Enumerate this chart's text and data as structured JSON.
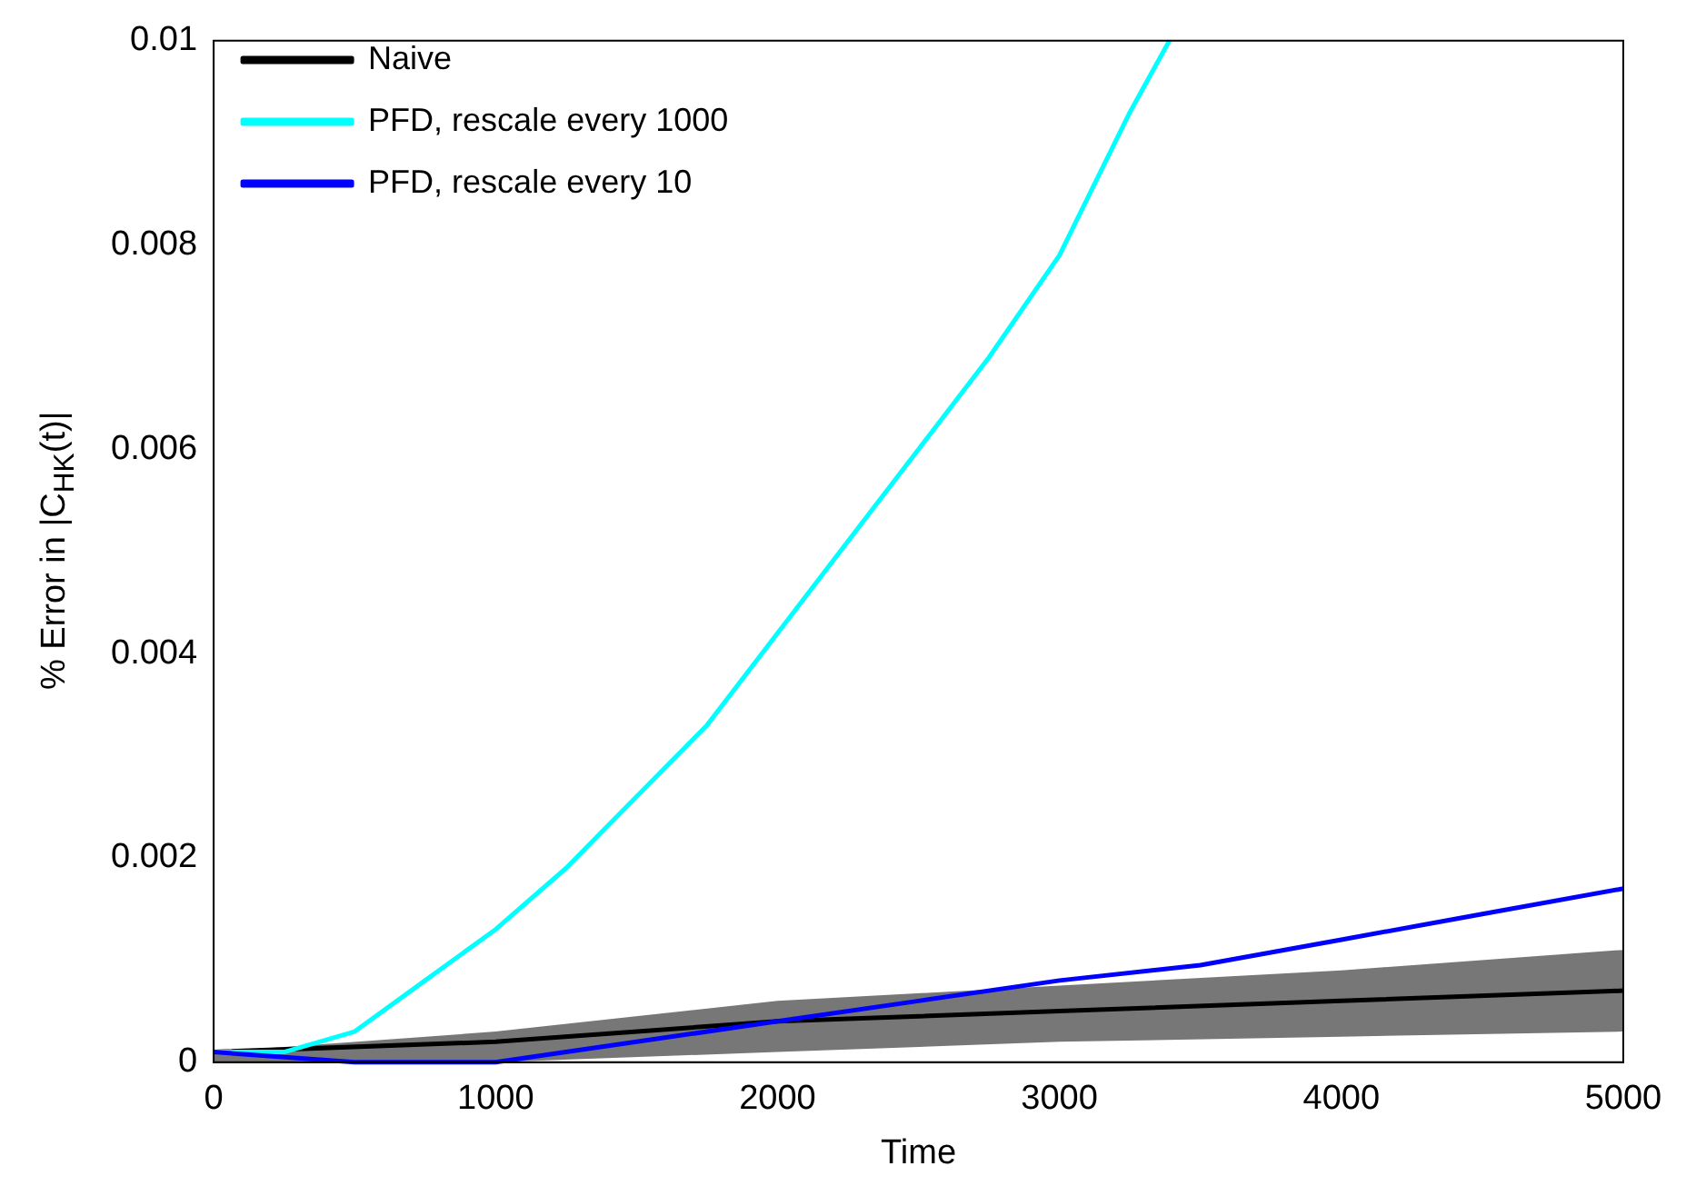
{
  "chart_data": {
    "type": "line",
    "xlabel": "Time",
    "ylabel": "% Error in |C$_{HK}$(t)|",
    "xlim": [
      0,
      5000
    ],
    "xticks": [
      0,
      1000,
      2000,
      3000,
      4000,
      5000
    ],
    "ylim": [
      0,
      0.01
    ],
    "yticks": [
      0,
      0.002,
      0.004,
      0.006,
      0.008,
      0.01
    ],
    "grid": false,
    "legend": "top left",
    "marker": "none",
    "line_style": "solid",
    "series": [
      {
        "name": "Naive",
        "color": "#000000",
        "x": [
          0,
          1000,
          2000,
          3000,
          4000,
          5000
        ],
        "values": [
          0.0001,
          0.0002,
          0.0004,
          0.0005,
          0.0006,
          0.0007
        ],
        "lower": [
          0,
          0,
          0.0001,
          0.0002,
          0.00025,
          0.0003
        ],
        "upper": [
          0.0001,
          0.0003,
          0.0006,
          0.00075,
          0.0009,
          0.0011
        ]
      },
      {
        "name": "PFD, rescale every 1000",
        "color": "#00ffff",
        "x": [
          0,
          250,
          500,
          750,
          1000,
          1250,
          1500,
          1750,
          2000,
          2250,
          2500,
          2750,
          3000,
          3250,
          3390
        ],
        "values": [
          0.0001,
          0.0001,
          0.0003,
          0.0008,
          0.0013,
          0.0019,
          0.0026,
          0.0033,
          0.0042,
          0.0051,
          0.006,
          0.0069,
          0.0079,
          0.0093,
          0.01
        ]
      },
      {
        "name": "PFD, rescale every 10",
        "color": "#0000ff",
        "x": [
          0,
          500,
          1000,
          1500,
          2000,
          2500,
          3000,
          3500,
          4000,
          4500,
          5000
        ],
        "values": [
          0.0001,
          0,
          0,
          0.0002,
          0.0004,
          0.0006,
          0.0008,
          0.00095,
          0.0012,
          0.00145,
          0.0017
        ]
      }
    ]
  }
}
